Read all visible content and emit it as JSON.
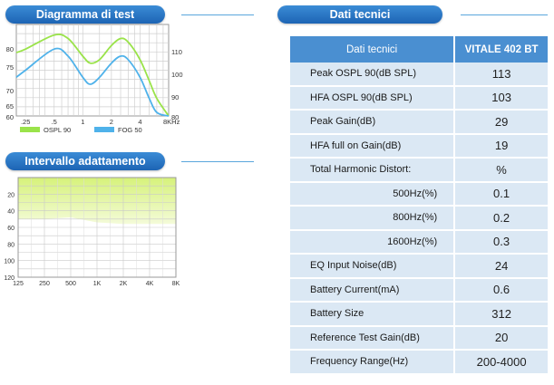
{
  "sections": {
    "test_diagram_title": "Diagramma di test",
    "fitting_range_title": "Intervallo adattamento",
    "tech_data_title": "Dati tecnici"
  },
  "test_chart": {
    "left_ticks": [
      "80",
      "75",
      "70",
      "65",
      "60"
    ],
    "right_ticks": [
      "110",
      "100",
      "90",
      "80"
    ],
    "x_ticks": [
      ".25",
      ".5",
      "1",
      "2",
      "4",
      "8KHz"
    ],
    "legend": [
      "OSPL 90",
      "FOG 50"
    ],
    "colors": {
      "ospl": "#9ae34a",
      "fog": "#4fb2ea"
    }
  },
  "chart_data": [
    {
      "type": "line",
      "x": [
        0.2,
        0.25,
        0.5,
        0.7,
        1,
        1.2,
        1.5,
        2,
        2.5,
        3,
        4,
        5,
        6,
        8
      ],
      "series": [
        {
          "name": "OSPL 90",
          "values": [
            78,
            79,
            83,
            82,
            77,
            75,
            76,
            80,
            82,
            81,
            76,
            70,
            65,
            60
          ]
        },
        {
          "name": "FOG 50",
          "values": [
            71,
            73,
            79,
            77,
            71,
            69,
            71,
            75,
            77,
            76,
            71,
            65,
            61,
            60
          ]
        }
      ],
      "ylim": [
        60,
        86
      ],
      "y_right_ticks": [
        "110",
        "100",
        "90",
        "80"
      ]
    },
    {
      "type": "area",
      "categories": [
        "125",
        "250",
        "500",
        "1K",
        "2K",
        "4K",
        "8K"
      ],
      "values": [
        50,
        50,
        48,
        54,
        56,
        56,
        56
      ],
      "y_ticks": [
        "20",
        "40",
        "60",
        "80",
        "100",
        "120"
      ],
      "ylim": [
        0,
        120
      ]
    }
  ],
  "fitting_chart": {
    "y_ticks": [
      "20",
      "40",
      "60",
      "80",
      "100",
      "120"
    ],
    "x_ticks": [
      "125",
      "250",
      "500",
      "1K",
      "2K",
      "4K",
      "8K"
    ]
  },
  "spec_table": {
    "header": [
      "Dati tecnici",
      "VITALE 402 BT"
    ],
    "rows": [
      {
        "label": "Peak OSPL 90(dB SPL)",
        "value": "113"
      },
      {
        "label": "HFA OSPL 90(dB SPL)",
        "value": "103"
      },
      {
        "label": "Peak Gain(dB)",
        "value": "29"
      },
      {
        "label": "HFA  full on Gain(dB)",
        "value": "19"
      },
      {
        "label": "Total Harmonic Distort:",
        "value": "%"
      },
      {
        "label": "500Hz(%)",
        "value": "0.1"
      },
      {
        "label": "800Hz(%)",
        "value": "0.2"
      },
      {
        "label": "1600Hz(%)",
        "value": "0.3"
      },
      {
        "label": "EQ Input Noise(dB)",
        "value": "24"
      },
      {
        "label": "Battery Current(mA)",
        "value": "0.6"
      },
      {
        "label": "Battery Size",
        "value": "312"
      },
      {
        "label": "Reference Test Gain(dB)",
        "value": "20"
      },
      {
        "label": "Frequency Range(Hz)",
        "value": "200-4000"
      }
    ]
  }
}
